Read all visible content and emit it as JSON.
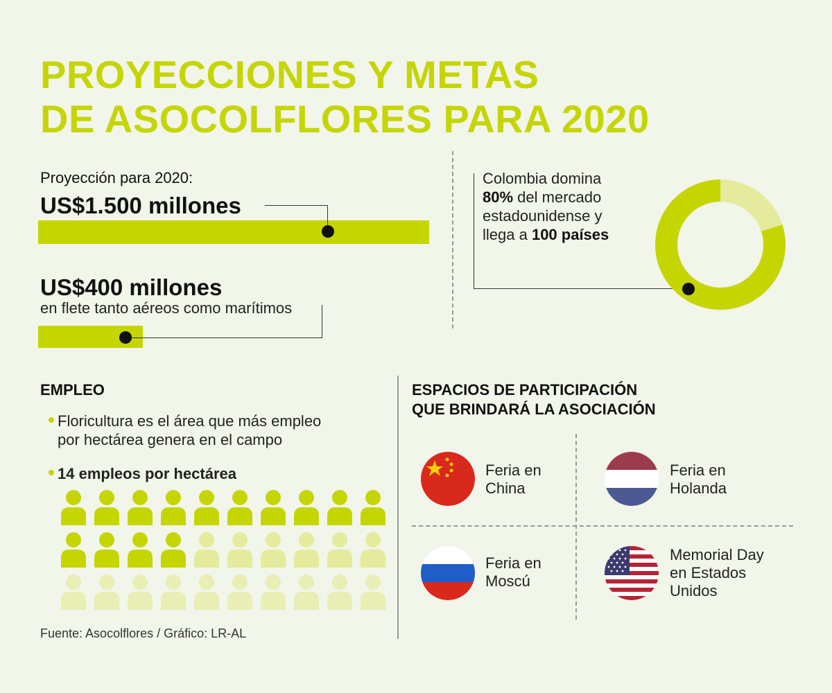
{
  "title": {
    "line1": "PROYECCIONES Y METAS",
    "line2": "DE ASOCOLFLORES PARA 2020"
  },
  "projection": {
    "label": "Proyección para 2020:",
    "value": "US$1.500 millones"
  },
  "freight": {
    "value": "US$400 millones",
    "description": "en flete tanto aéreos como marítimos"
  },
  "market": {
    "text_before": "Colombia domina",
    "percent": "80%",
    "text_mid": " del mercado",
    "text_line3": "estadounidense y",
    "text_line4a": "llega a ",
    "countries": "100 países",
    "share_fraction": 0.8
  },
  "employment": {
    "heading": "EMPLEO",
    "bullet1_line1": "Floricultura es el área que más empleo",
    "bullet1_line2": "por hectárea genera en el campo",
    "bullet2": "14 empleos por hectárea",
    "highlighted_count": 14,
    "total_icons": 30
  },
  "participation": {
    "heading_line1": "ESPACIOS DE PARTICIPACIÓN",
    "heading_line2": "QUE BRINDARÁ LA ASOCIACIÓN",
    "fairs": [
      {
        "line1": "Feria en",
        "line2": "China",
        "flag": "china-flag-icon"
      },
      {
        "line1": "Feria en",
        "line2": "Holanda",
        "flag": "netherlands-flag-icon"
      },
      {
        "line1": "Feria en",
        "line2": "Moscú",
        "flag": "russia-flag-icon"
      },
      {
        "line1": "Memorial Day",
        "line2": "en Estados",
        "line3": "Unidos",
        "flag": "usa-flag-icon"
      }
    ]
  },
  "source": "Fuente: Asocolflores / Gráfico: LR-AL",
  "colors": {
    "accent": "#c5d500",
    "accent_light": "#e4eb9c",
    "background": "#f2f5e9"
  }
}
